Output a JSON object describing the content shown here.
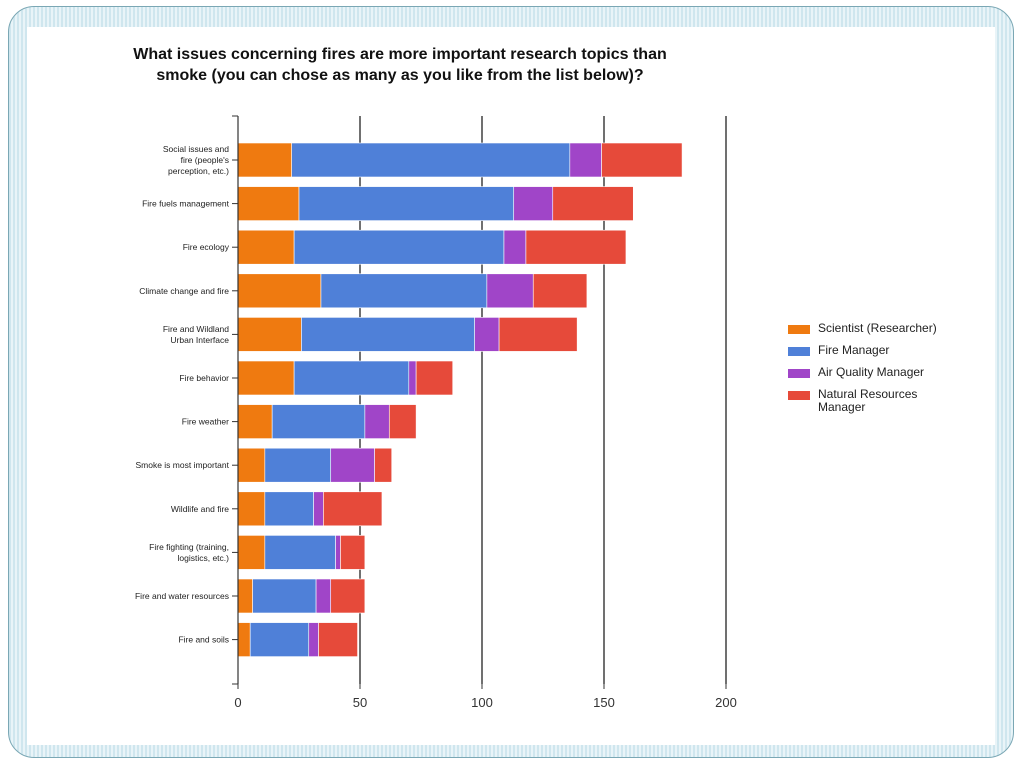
{
  "chart_data": {
    "type": "bar",
    "orientation": "horizontal",
    "stacked": true,
    "title": "What issues concerning fires are more important research topics than\nsmoke (you can chose as many as you like from the list below)?",
    "categories": [
      "Social issues and\nfire (people's\nperception, etc.)",
      "Fire fuels management",
      "Fire ecology",
      "Climate change and fire",
      "Fire and Wildland\nUrban Interface",
      "Fire behavior",
      "Fire weather",
      "Smoke is most important",
      "Wildlife and fire",
      "Fire fighting (training,\nlogistics, etc.)",
      "Fire and water resources",
      "Fire and soils"
    ],
    "series": [
      {
        "name": "Scientist (Researcher)",
        "color": "#ef7a10",
        "values": [
          22,
          25,
          23,
          34,
          26,
          23,
          14,
          11,
          11,
          11,
          6,
          5
        ]
      },
      {
        "name": "Fire Manager",
        "color": "#4f80d8",
        "values": [
          114,
          88,
          86,
          68,
          71,
          47,
          38,
          27,
          20,
          29,
          26,
          24
        ]
      },
      {
        "name": "Air Quality Manager",
        "color": "#a045c8",
        "values": [
          13,
          16,
          9,
          19,
          10,
          3,
          10,
          18,
          4,
          2,
          6,
          4
        ]
      },
      {
        "name": "Natural Resources\nManager",
        "color": "#e64a3a",
        "values": [
          33,
          33,
          41,
          22,
          32,
          15,
          11,
          7,
          24,
          10,
          14,
          16
        ]
      }
    ],
    "xlim": [
      0,
      200
    ],
    "xticks": [
      "0",
      "50",
      "100",
      "150",
      "200"
    ],
    "grid": true,
    "legend_position": "right"
  }
}
